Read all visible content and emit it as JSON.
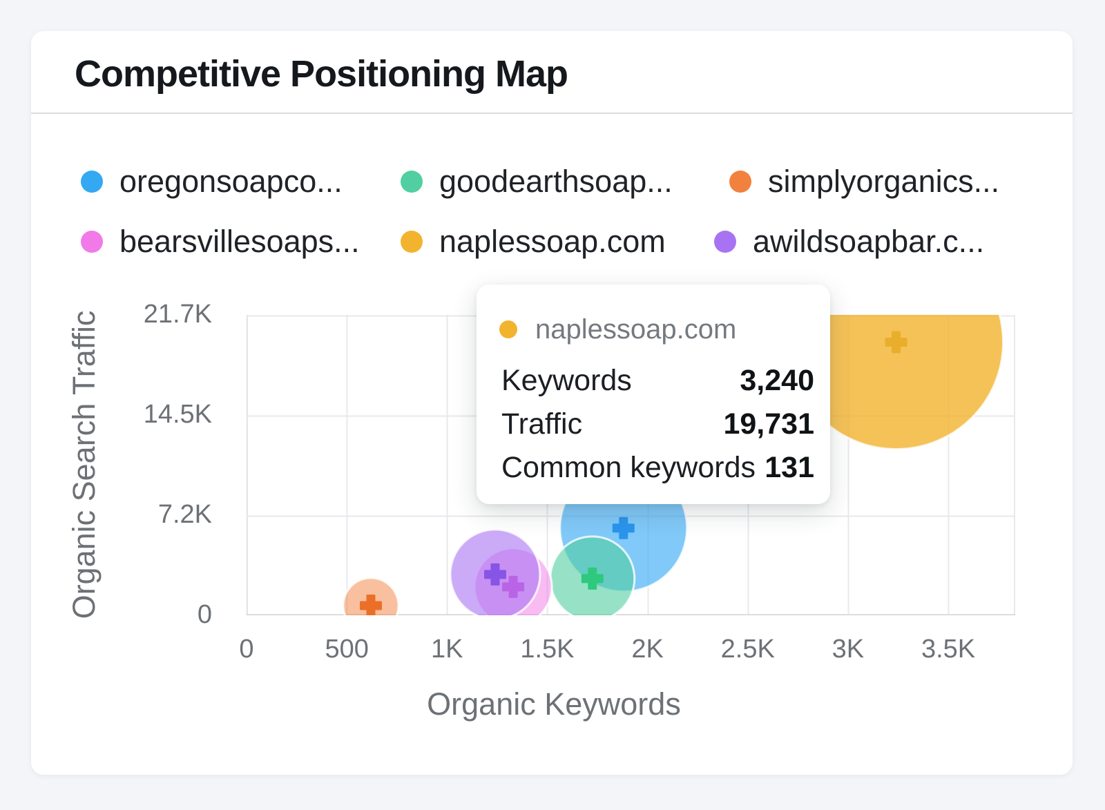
{
  "card": {
    "title": "Competitive Positioning Map"
  },
  "legend": {
    "items": [
      {
        "label": "oregonsoapco...",
        "color": "#33a8f3"
      },
      {
        "label": "goodearthsoap...",
        "color": "#52cfa0"
      },
      {
        "label": "simplyorganics...",
        "color": "#f2813e"
      },
      {
        "label": "bearsvillesoaps...",
        "color": "#f279e8"
      },
      {
        "label": "naplessoap.com",
        "color": "#f2b32e"
      },
      {
        "label": "awildsoapbar.c...",
        "color": "#a873f3"
      }
    ]
  },
  "chart_data": {
    "type": "scatter",
    "subtype": "bubble",
    "xlabel": "Organic Keywords",
    "ylabel": "Organic Search Traffic",
    "x_ticks": [
      "0",
      "500",
      "1K",
      "1.5K",
      "2K",
      "2.5K",
      "3K",
      "3.5K"
    ],
    "x_tick_values": [
      0,
      500,
      1000,
      1500,
      2000,
      2500,
      3000,
      3500
    ],
    "xlim": [
      0,
      3834
    ],
    "y_ticks": [
      "0",
      "7.2K",
      "14.5K",
      "21.7K"
    ],
    "y_tick_values": [
      0,
      7233,
      14467,
      21700
    ],
    "ylim": [
      0,
      21700
    ],
    "grid": true,
    "legend_position": "top",
    "series": [
      {
        "name": "oregonsoapco...",
        "color": "#33a8f3",
        "marker_color": "#2b95ec",
        "fill_opacity": 0.62,
        "keywords": 1880,
        "traffic": 6300,
        "radius_px": 92
      },
      {
        "name": "goodearthsoap...",
        "color": "#52cfa0",
        "marker_color": "#2ec97d",
        "fill_opacity": 0.6,
        "keywords": 1725,
        "traffic": 2650,
        "radius_px": 61
      },
      {
        "name": "simplyorganics...",
        "color": "#f2813e",
        "marker_color": "#ec6f28",
        "fill_opacity": 0.5,
        "keywords": 620,
        "traffic": 700,
        "radius_px": 40
      },
      {
        "name": "bearsvillesoaps...",
        "color": "#f279e8",
        "marker_color": "#d14fd1",
        "fill_opacity": 0.5,
        "keywords": 1330,
        "traffic": 2050,
        "radius_px": 56
      },
      {
        "name": "naplessoap.com",
        "color": "#f2b32e",
        "marker_color": "#e9ae2b",
        "fill_opacity": 0.8,
        "keywords": 3240,
        "traffic": 19731,
        "radius_px": 155
      },
      {
        "name": "awildsoapbar.c...",
        "color": "#a873f3",
        "marker_color": "#8655e6",
        "fill_opacity": 0.6,
        "keywords": 1240,
        "traffic": 2950,
        "radius_px": 65
      }
    ]
  },
  "tooltip": {
    "series": "naplessoap.com",
    "dot_color": "#f2b32e",
    "rows": [
      {
        "label": "Keywords",
        "value": "3,240"
      },
      {
        "label": "Traffic",
        "value": "19,731"
      },
      {
        "label": "Common keywords",
        "value": "131"
      }
    ]
  }
}
